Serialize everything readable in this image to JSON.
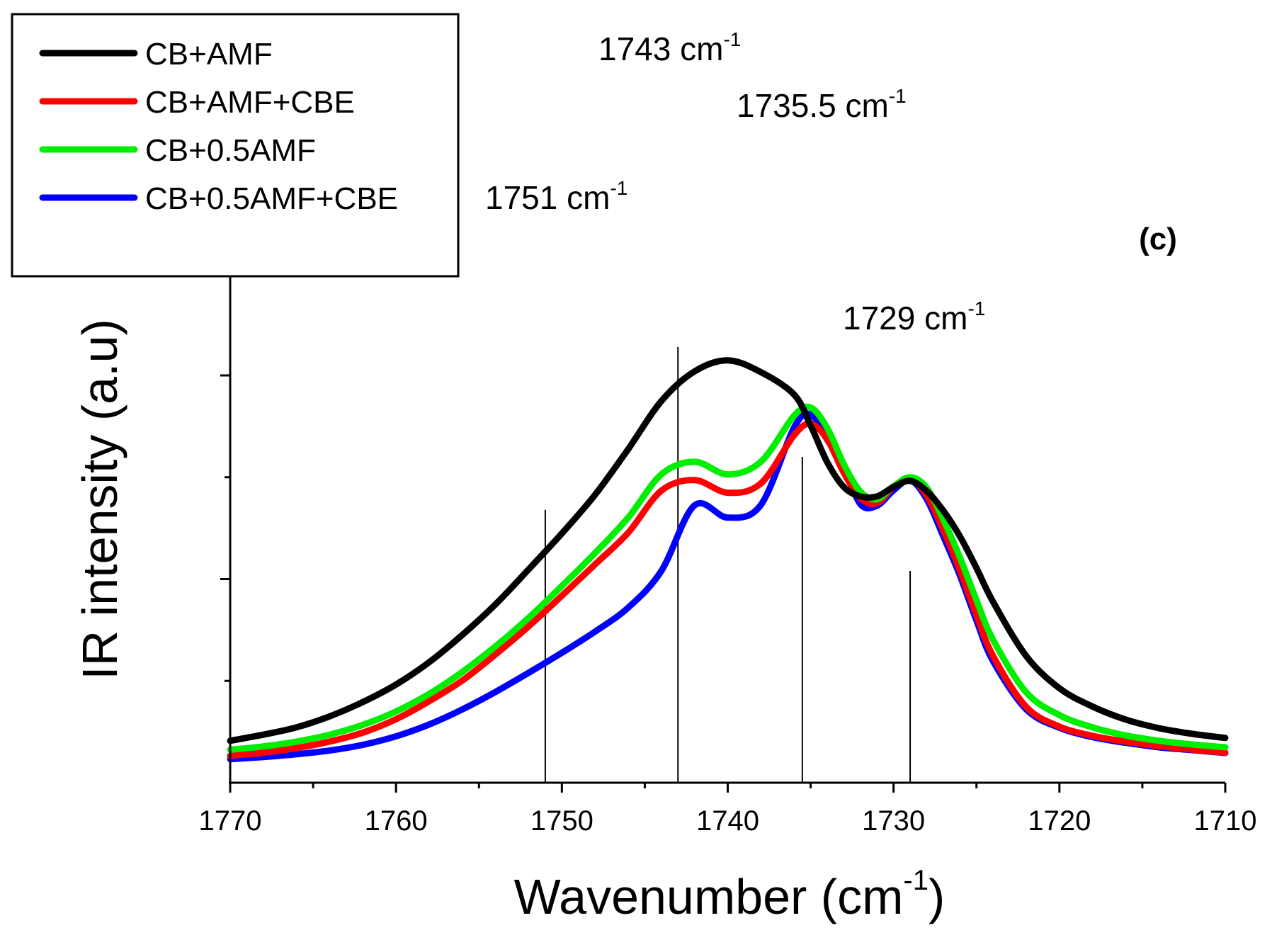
{
  "chart_data": {
    "type": "line",
    "title": "",
    "panel_label": "(c)",
    "xlabel": "Wavenumber (cm",
    "xlabel_sup": "-1",
    "xlabel_close": ")",
    "ylabel": "IR intensity (a.u)",
    "xlim": [
      1770,
      1710
    ],
    "x_reversed": true,
    "ylim": [
      0,
      1
    ],
    "x_ticks": [
      "1770",
      "1760",
      "1750",
      "1740",
      "1730",
      "1720",
      "1710"
    ],
    "x_tick_values": [
      1770,
      1760,
      1750,
      1740,
      1730,
      1720,
      1710
    ],
    "x_minor_ticks": [
      1765,
      1755,
      1745,
      1735,
      1725,
      1715
    ],
    "y_major_ticks": [
      0.5,
      1.0
    ],
    "y_minor_ticks": [
      0.25,
      0.75
    ],
    "grid": false,
    "legend_position": "top-left",
    "peaks": [
      {
        "x": 1751,
        "label": "1751 cm",
        "sup": "-1",
        "top": 0.67
      },
      {
        "x": 1743,
        "label": "1743 cm",
        "sup": "-1",
        "top": 1.07
      },
      {
        "x": 1735.5,
        "label": "1735.5 cm",
        "sup": "-1",
        "top": 0.8
      },
      {
        "x": 1729,
        "label": "1729 cm",
        "sup": "-1",
        "top": 0.52
      }
    ],
    "series": [
      {
        "name": "CB+AMF",
        "color": "#000000",
        "x": [
          1770,
          1768,
          1766,
          1764,
          1762,
          1760,
          1758,
          1756,
          1754,
          1752,
          1750,
          1748,
          1746,
          1744,
          1742,
          1740,
          1738,
          1736,
          1735,
          1734,
          1733,
          1732,
          1731,
          1730,
          1729,
          1728,
          1727,
          1726,
          1725,
          1724,
          1722,
          1720,
          1718,
          1716,
          1714,
          1712,
          1710
        ],
        "values": [
          0.103,
          0.118,
          0.136,
          0.163,
          0.198,
          0.241,
          0.296,
          0.363,
          0.438,
          0.524,
          0.612,
          0.707,
          0.819,
          0.937,
          1.01,
          1.037,
          1.008,
          0.953,
          0.877,
          0.787,
          0.726,
          0.703,
          0.703,
          0.726,
          0.741,
          0.716,
          0.668,
          0.605,
          0.527,
          0.444,
          0.311,
          0.232,
          0.187,
          0.155,
          0.134,
          0.12,
          0.11
        ]
      },
      {
        "name": "CB+AMF+CBE",
        "color": "#ff0000",
        "x": [
          1770,
          1768,
          1766,
          1764,
          1762,
          1760,
          1758,
          1756,
          1754,
          1752,
          1750,
          1748,
          1746,
          1744,
          1742,
          1740,
          1738,
          1736,
          1735,
          1734,
          1733,
          1732,
          1731,
          1730,
          1729,
          1728,
          1727,
          1726,
          1725,
          1724,
          1722,
          1720,
          1718,
          1716,
          1714,
          1712,
          1710
        ],
        "values": [
          0.066,
          0.074,
          0.085,
          0.101,
          0.123,
          0.156,
          0.2,
          0.251,
          0.315,
          0.384,
          0.459,
          0.536,
          0.614,
          0.717,
          0.743,
          0.712,
          0.735,
          0.853,
          0.881,
          0.843,
          0.761,
          0.699,
          0.686,
          0.726,
          0.744,
          0.705,
          0.62,
          0.521,
          0.411,
          0.311,
          0.186,
          0.138,
          0.115,
          0.101,
          0.09,
          0.081,
          0.074
        ]
      },
      {
        "name": "CB+0.5AMF",
        "color": "#00ee00",
        "x": [
          1770,
          1768,
          1766,
          1764,
          1762,
          1760,
          1758,
          1756,
          1754,
          1752,
          1750,
          1748,
          1746,
          1744,
          1742,
          1740,
          1738,
          1736,
          1735,
          1734,
          1733,
          1732,
          1731,
          1730,
          1729,
          1728,
          1727,
          1726,
          1725,
          1724,
          1722,
          1720,
          1718,
          1716,
          1714,
          1712,
          1710
        ],
        "values": [
          0.081,
          0.089,
          0.101,
          0.118,
          0.142,
          0.175,
          0.218,
          0.272,
          0.335,
          0.405,
          0.483,
          0.564,
          0.651,
          0.757,
          0.788,
          0.757,
          0.788,
          0.901,
          0.921,
          0.871,
          0.782,
          0.715,
          0.696,
          0.728,
          0.75,
          0.724,
          0.646,
          0.553,
          0.448,
          0.351,
          0.222,
          0.166,
          0.136,
          0.116,
          0.103,
          0.094,
          0.087
        ]
      },
      {
        "name": "CB+0.5AMF+CBE",
        "color": "#0000ff",
        "x": [
          1770,
          1768,
          1766,
          1764,
          1762,
          1760,
          1758,
          1756,
          1754,
          1752,
          1750,
          1748,
          1746,
          1744,
          1742,
          1740,
          1738,
          1736,
          1735,
          1734,
          1733,
          1732,
          1731,
          1730,
          1729,
          1728,
          1727,
          1726,
          1725,
          1724,
          1722,
          1720,
          1718,
          1716,
          1714,
          1712,
          1710
        ],
        "values": [
          0.058,
          0.063,
          0.07,
          0.079,
          0.093,
          0.114,
          0.143,
          0.18,
          0.223,
          0.27,
          0.319,
          0.371,
          0.43,
          0.52,
          0.681,
          0.651,
          0.682,
          0.872,
          0.904,
          0.842,
          0.776,
          0.684,
          0.68,
          0.718,
          0.743,
          0.696,
          0.605,
          0.509,
          0.398,
          0.298,
          0.18,
          0.135,
          0.112,
          0.098,
          0.087,
          0.08,
          0.073
        ]
      }
    ]
  }
}
